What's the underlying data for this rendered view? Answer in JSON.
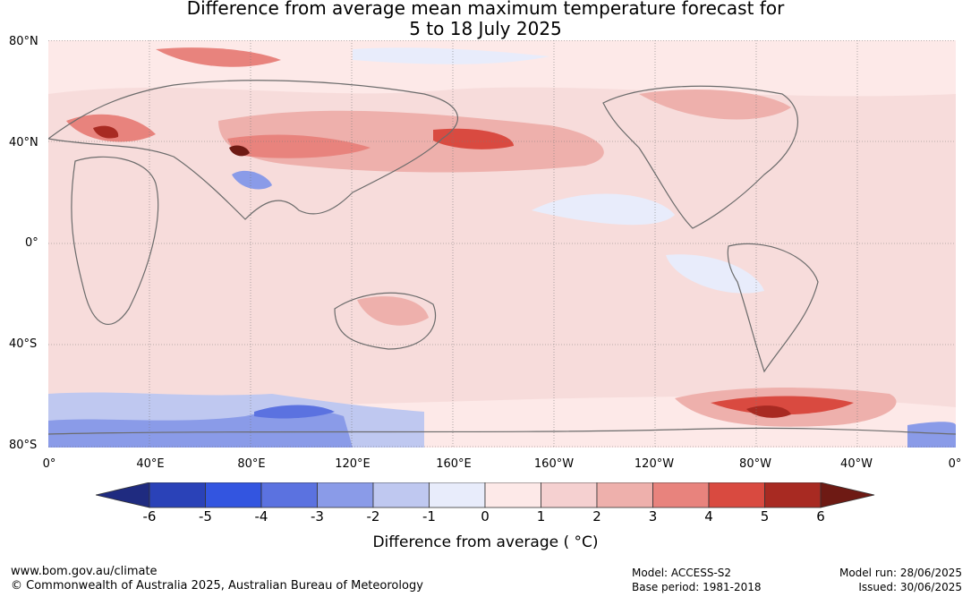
{
  "title": {
    "line1": "Difference from average mean maximum temperature forecast for",
    "line2": "5 to 18 July 2025"
  },
  "lat_labels": [
    "80°N",
    "40°N",
    "0°",
    "40°S",
    "80°S"
  ],
  "lon_labels": [
    "0°",
    "40°E",
    "80°E",
    "120°E",
    "160°E",
    "160°W",
    "120°W",
    "80°W",
    "40°W",
    "0°"
  ],
  "colorbar": {
    "ticks": [
      "-6",
      "-5",
      "-4",
      "-3",
      "-2",
      "-1",
      "0",
      "1",
      "2",
      "3",
      "4",
      "5",
      "6"
    ],
    "colors": [
      "#1f2b80",
      "#2a42b8",
      "#3355e0",
      "#5b72e0",
      "#8a9be8",
      "#bfc8f0",
      "#e8ecfb",
      "#fde9e8",
      "#f5d0d0",
      "#eeb0ac",
      "#e8837d",
      "#d94a40",
      "#a82a22",
      "#6e1a14"
    ],
    "label": "Difference from average ( °C)"
  },
  "footer": {
    "url": "www.bom.gov.au/climate",
    "copyright": "© Commonwealth of Australia 2025, Australian Bureau of Meteorology",
    "model": "Model: ACCESS-S2",
    "base_period": "Base period: 1981-2018",
    "model_run": "Model run: 28/06/2025",
    "issued": "Issued: 30/06/2025"
  }
}
